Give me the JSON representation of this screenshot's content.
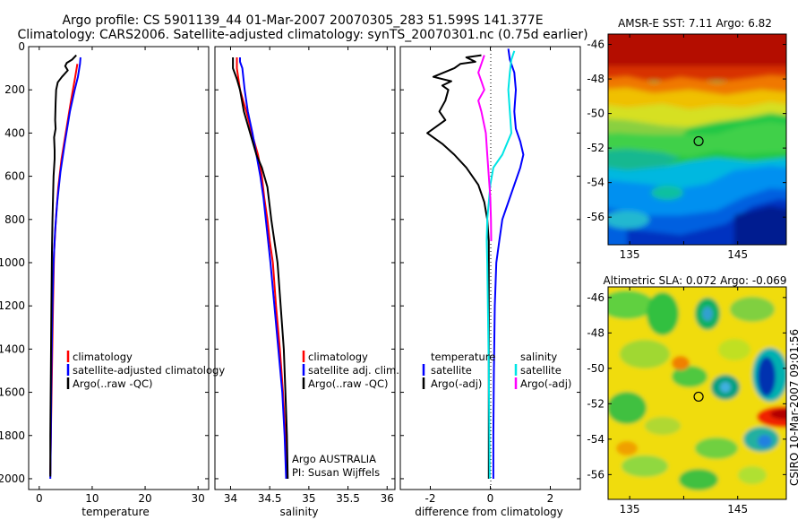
{
  "header": {
    "line1": "Argo profile: CS 5901139_44 01-Mar-2007 20070305_283 51.599S 141.377E",
    "line2": "Climatology: CARS2006. Satellite-adjusted climatology: synTS_20070301.nc (0.75d earlier)"
  },
  "colors": {
    "climatology": "#ff0000",
    "satellite": "#0000ff",
    "argo": "#000000",
    "salinity_sat": "#00e5e5",
    "salinity_argo": "#ff00ff"
  },
  "chart_data": [
    {
      "type": "line",
      "xlabel": "temperature",
      "ylabel": "",
      "xlim": [
        -2,
        32
      ],
      "ylim": [
        0,
        2050
      ],
      "y_reversed": true,
      "xticks": [
        0,
        10,
        20,
        30
      ],
      "yticks": [
        0,
        200,
        400,
        600,
        800,
        1000,
        1200,
        1400,
        1600,
        1800,
        2000
      ],
      "legend": [
        "climatology",
        "satellite-adjusted climatology",
        "Argo(..raw -QC)"
      ],
      "series": [
        {
          "name": "climatology",
          "color": "#ff0000",
          "points": [
            [
              7.2,
              80
            ],
            [
              6.8,
              140
            ],
            [
              6.0,
              250
            ],
            [
              5.0,
              400
            ],
            [
              4.2,
              520
            ],
            [
              3.6,
              650
            ],
            [
              3.2,
              780
            ],
            [
              2.8,
              950
            ],
            [
              2.6,
              1200
            ],
            [
              2.4,
              1500
            ],
            [
              2.2,
              1800
            ],
            [
              2.1,
              1980
            ]
          ]
        },
        {
          "name": "satellite-adjusted climatology",
          "color": "#0000ff",
          "points": [
            [
              7.8,
              50
            ],
            [
              7.7,
              80
            ],
            [
              7.3,
              140
            ],
            [
              6.7,
              200
            ],
            [
              5.8,
              300
            ],
            [
              4.8,
              450
            ],
            [
              4.0,
              580
            ],
            [
              3.4,
              720
            ],
            [
              3.0,
              850
            ],
            [
              2.7,
              1000
            ],
            [
              2.5,
              1200
            ],
            [
              2.3,
              1500
            ],
            [
              2.2,
              1800
            ],
            [
              2.1,
              2000
            ]
          ]
        },
        {
          "name": "Argo(..raw -QC)",
          "color": "#000000",
          "points": [
            [
              7.0,
              40
            ],
            [
              6.2,
              60
            ],
            [
              5.2,
              75
            ],
            [
              4.9,
              90
            ],
            [
              5.4,
              110
            ],
            [
              4.3,
              140
            ],
            [
              3.5,
              165
            ],
            [
              3.2,
              200
            ],
            [
              3.1,
              260
            ],
            [
              3.0,
              340
            ],
            [
              3.1,
              380
            ],
            [
              2.8,
              420
            ],
            [
              2.9,
              480
            ],
            [
              2.9,
              520
            ],
            [
              2.7,
              600
            ],
            [
              2.6,
              700
            ],
            [
              2.5,
              800
            ],
            [
              2.4,
              950
            ],
            [
              2.3,
              1200
            ],
            [
              2.2,
              1500
            ],
            [
              2.1,
              1800
            ],
            [
              2.1,
              1990
            ]
          ]
        }
      ]
    },
    {
      "type": "line",
      "xlabel": "salinity",
      "xlim": [
        33.8,
        36.1
      ],
      "ylim": [
        0,
        2050
      ],
      "y_reversed": true,
      "xticks": [
        34,
        34.5,
        35,
        35.5,
        36
      ],
      "xtick_labels": [
        "34",
        "34.5",
        "35",
        "35.5",
        "36"
      ],
      "legend": [
        "climatology",
        "satellite adj. clim.",
        "Argo(..raw -QC)"
      ],
      "annotation": [
        "Argo AUSTRALIA",
        "PI: Susan Wijffels"
      ],
      "series": [
        {
          "name": "climatology",
          "color": "#ff0000",
          "points": [
            [
              34.08,
              50
            ],
            [
              34.08,
              100
            ],
            [
              34.12,
              200
            ],
            [
              34.2,
              300
            ],
            [
              34.27,
              400
            ],
            [
              34.35,
              500
            ],
            [
              34.4,
              600
            ],
            [
              34.43,
              700
            ],
            [
              34.47,
              800
            ],
            [
              34.5,
              900
            ],
            [
              34.54,
              1000
            ],
            [
              34.58,
              1200
            ],
            [
              34.63,
              1400
            ],
            [
              34.67,
              1600
            ],
            [
              34.7,
              1800
            ],
            [
              34.72,
              2000
            ]
          ]
        },
        {
          "name": "satellite adj. clim.",
          "color": "#0000ff",
          "points": [
            [
              34.12,
              50
            ],
            [
              34.12,
              70
            ],
            [
              34.15,
              100
            ],
            [
              34.18,
              200
            ],
            [
              34.22,
              300
            ],
            [
              34.28,
              400
            ],
            [
              34.33,
              500
            ],
            [
              34.38,
              600
            ],
            [
              34.42,
              700
            ],
            [
              34.45,
              800
            ],
            [
              34.48,
              900
            ],
            [
              34.51,
              1000
            ],
            [
              34.56,
              1200
            ],
            [
              34.61,
              1400
            ],
            [
              34.66,
              1600
            ],
            [
              34.69,
              1800
            ],
            [
              34.71,
              2000
            ]
          ]
        },
        {
          "name": "Argo(..raw -QC)",
          "color": "#000000",
          "points": [
            [
              34.03,
              50
            ],
            [
              34.03,
              100
            ],
            [
              34.08,
              150
            ],
            [
              34.12,
              200
            ],
            [
              34.17,
              300
            ],
            [
              34.25,
              400
            ],
            [
              34.33,
              500
            ],
            [
              34.4,
              560
            ],
            [
              34.47,
              650
            ],
            [
              34.52,
              800
            ],
            [
              34.56,
              900
            ],
            [
              34.6,
              1000
            ],
            [
              34.64,
              1200
            ],
            [
              34.68,
              1400
            ],
            [
              34.7,
              1600
            ],
            [
              34.72,
              1800
            ],
            [
              34.73,
              2000
            ]
          ]
        }
      ]
    },
    {
      "type": "line",
      "xlabel": "difference from climatology",
      "xlim": [
        -3,
        3
      ],
      "ylim": [
        0,
        2050
      ],
      "y_reversed": true,
      "xticks": [
        -2,
        0,
        2
      ],
      "legend_temperature": {
        "header": "temperature",
        "entries": [
          "satellite",
          "Argo(-adj)"
        ]
      },
      "legend_salinity": {
        "header": "salinity",
        "entries": [
          "satellite",
          "Argo(-adj)"
        ]
      },
      "series": [
        {
          "name": "temperature satellite",
          "color": "#0000ff",
          "points": [
            [
              0.6,
              10
            ],
            [
              0.65,
              60
            ],
            [
              0.8,
              120
            ],
            [
              0.85,
              200
            ],
            [
              0.8,
              300
            ],
            [
              0.85,
              380
            ],
            [
              1.0,
              440
            ],
            [
              1.1,
              500
            ],
            [
              1.0,
              560
            ],
            [
              0.8,
              640
            ],
            [
              0.6,
              720
            ],
            [
              0.4,
              800
            ],
            [
              0.3,
              900
            ],
            [
              0.2,
              1000
            ],
            [
              0.15,
              1200
            ],
            [
              0.12,
              1500
            ],
            [
              0.1,
              1800
            ],
            [
              0.1,
              2000
            ]
          ]
        },
        {
          "name": "temperature Argo(-adj)",
          "color": "#000000",
          "points": [
            [
              -0.3,
              40
            ],
            [
              -0.8,
              50
            ],
            [
              -0.5,
              70
            ],
            [
              -1.0,
              80
            ],
            [
              -1.2,
              100
            ],
            [
              -1.9,
              140
            ],
            [
              -1.3,
              160
            ],
            [
              -1.6,
              180
            ],
            [
              -1.4,
              200
            ],
            [
              -1.5,
              250
            ],
            [
              -1.7,
              300
            ],
            [
              -1.5,
              340
            ],
            [
              -2.1,
              400
            ],
            [
              -1.6,
              450
            ],
            [
              -1.2,
              500
            ],
            [
              -0.8,
              560
            ],
            [
              -0.4,
              640
            ],
            [
              -0.2,
              720
            ],
            [
              -0.1,
              800
            ],
            [
              -0.05,
              900
            ],
            [
              -0.05,
              1000
            ],
            [
              -0.05,
              1200
            ],
            [
              -0.05,
              1500
            ],
            [
              -0.05,
              1800
            ],
            [
              -0.05,
              2000
            ]
          ]
        },
        {
          "name": "salinity satellite",
          "color": "#00e5e5",
          "points": [
            [
              0.8,
              20
            ],
            [
              0.7,
              60
            ],
            [
              0.65,
              120
            ],
            [
              0.6,
              200
            ],
            [
              0.65,
              300
            ],
            [
              0.7,
              400
            ],
            [
              0.4,
              500
            ],
            [
              0.1,
              560
            ],
            [
              0,
              640
            ],
            [
              -0.05,
              720
            ],
            [
              -0.1,
              800
            ],
            [
              -0.12,
              900
            ],
            [
              -0.1,
              1000
            ],
            [
              -0.08,
              1200
            ],
            [
              -0.05,
              1500
            ],
            [
              -0.03,
              1800
            ],
            [
              -0.02,
              2000
            ]
          ]
        },
        {
          "name": "salinity Argo(-adj)",
          "color": "#ff00ff",
          "points": [
            [
              -0.2,
              40
            ],
            [
              -0.3,
              80
            ],
            [
              -0.4,
              120
            ],
            [
              -0.3,
              160
            ],
            [
              -0.2,
              200
            ],
            [
              -0.4,
              250
            ],
            [
              -0.3,
              300
            ],
            [
              -0.15,
              400
            ],
            [
              -0.1,
              500
            ],
            [
              -0.05,
              600
            ],
            [
              0.0,
              700
            ],
            [
              0.02,
              800
            ],
            [
              0.03,
              900
            ]
          ]
        }
      ]
    },
    {
      "type": "heatmap",
      "title": "AMSR-E SST: 7.11 Argo: 6.82",
      "xticks": [
        135,
        140,
        145
      ],
      "xtick_labels": [
        "135",
        "",
        "145"
      ],
      "xlim": [
        133,
        149.5
      ],
      "ylim": [
        -57.6,
        -45.4
      ],
      "yticks": [
        -46,
        -48,
        -50,
        -52,
        -54,
        -56
      ],
      "marker": {
        "lon": 141.38,
        "lat": -51.6
      }
    },
    {
      "type": "heatmap",
      "title": "Altimetric SLA: 0.072 Argo: -0.069",
      "xticks": [
        135,
        140,
        145
      ],
      "xtick_labels": [
        "135",
        "",
        "145"
      ],
      "xlim": [
        133,
        149.5
      ],
      "ylim": [
        -57.4,
        -45.4
      ],
      "yticks": [
        -46,
        -48,
        -50,
        -52,
        -54,
        -56
      ],
      "marker": {
        "lon": 141.38,
        "lat": -51.6
      }
    }
  ],
  "side_label": "CSIRO 10-Mar-2007 09:01:56"
}
